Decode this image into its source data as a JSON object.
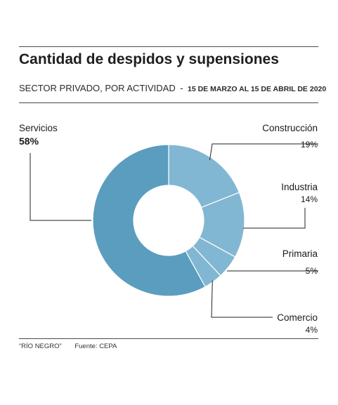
{
  "title": "Cantidad de despidos y supensiones",
  "subtitle": {
    "main": "SECTOR PRIVADO, POR ACTIVIDAD",
    "separator": "-",
    "date": "15 DE MARZO AL 15 DE ABRIL DE 2020"
  },
  "footer": {
    "credit": "“RÍO NEGRO”",
    "source": "Fuente: CEPA"
  },
  "colors": {
    "servicios": "#5b9dbf",
    "others": "#82b7d3",
    "stroke": "#ffffff",
    "rule": "#4a4a4a"
  },
  "chart_data": {
    "type": "pie",
    "variant": "donut",
    "title": "Cantidad de despidos y supensiones",
    "subtitle": "SECTOR PRIVADO, POR ACTIVIDAD - 15 DE MARZO AL 15 DE ABRIL DE 2020",
    "categories": [
      "Construcción",
      "Industria",
      "Primaria",
      "Comercio",
      "Servicios"
    ],
    "values": [
      19,
      14,
      5,
      4,
      58
    ],
    "value_labels": [
      "19%",
      "14%",
      "5%",
      "4%",
      "58%"
    ],
    "unit": "%",
    "label_placement": "outside with leader lines"
  }
}
